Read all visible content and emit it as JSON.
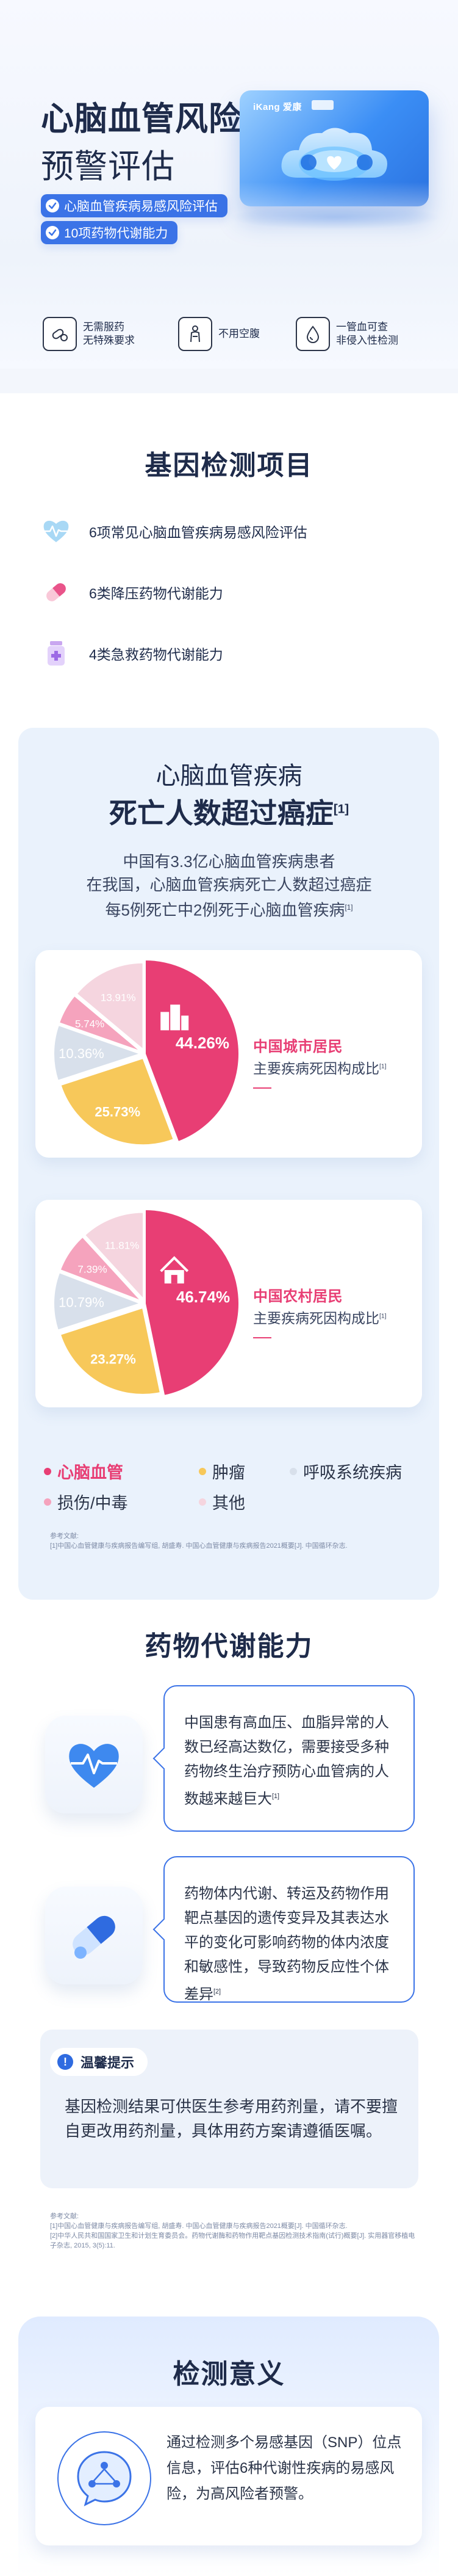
{
  "hero": {
    "title_line1": "心脑血管风险",
    "title_line2": "预警评估",
    "pill_1": "心脑血管疾病易感风险评估",
    "pill_2": "10项药物代谢能力",
    "kit_brand": "iKang 爱康",
    "features": [
      {
        "icon": "pill-capsule-icon",
        "text": "无需服药\n无特殊要求"
      },
      {
        "icon": "person-icon",
        "text": "不用空腹"
      },
      {
        "icon": "blood-drop-icon",
        "text": "一管血可查\n非侵入性检测"
      }
    ]
  },
  "gene_section": {
    "title": "基因检测项目",
    "items": [
      {
        "icon": "heartbeat-icon",
        "text": "6项常见心脑血管疾病易感风险评估"
      },
      {
        "icon": "pill-icon",
        "text": "6类降压药物代谢能力"
      },
      {
        "icon": "medicine-bottle-icon",
        "text": "4类急救药物代谢能力"
      }
    ]
  },
  "stats": {
    "title_1": "心脑血管疾病",
    "title_2": "死亡人数超过癌症",
    "title_2_sup": "[1]",
    "desc_lines": [
      "中国有3.3亿心脑血管疾病患者",
      "在我国，心脑血管疾病死亡人数超过癌症",
      "每5例死亡中2例死于心脑血管疾病"
    ],
    "desc_sup": "[1]",
    "cards": [
      {
        "title": "中国城市居民",
        "label": "主要疾病死因构成比",
        "label_sup": "[1]",
        "values": [
          44.26,
          25.73,
          10.36,
          5.74,
          13.91
        ],
        "labels": [
          "44.26%",
          "25.73%",
          "10.36%",
          "5.74%",
          "13.91%"
        ],
        "icon": "city-building-icon"
      },
      {
        "title": "中国农村居民",
        "label": "主要疾病死因构成比",
        "label_sup": "[1]",
        "values": [
          46.74,
          23.27,
          10.79,
          7.39,
          11.81
        ],
        "labels": [
          "46.74%",
          "23.27%",
          "10.79%",
          "7.39%",
          "11.81%"
        ],
        "icon": "house-icon"
      }
    ],
    "legend": [
      {
        "name": "心脑血管",
        "color": "#e83e74"
      },
      {
        "name": "肿瘤",
        "color": "#f7c85a"
      },
      {
        "name": "呼吸系统疾病",
        "color": "#d8e0eb"
      },
      {
        "name": "损伤/中毒",
        "color": "#f5a3bd"
      },
      {
        "name": "其他",
        "color": "#f5d5df"
      }
    ],
    "refs": "参考文献:\n[1]中国心血管健康与疾病报告编写组, 胡盛寿. 中国心血管健康与疾病报告2021概要[J]. 中国循环杂志."
  },
  "drug_section": {
    "title": "药物代谢能力",
    "bubble_1": "中国患有高血压、血脂异常的人数已经高达数亿，需要接受多种药物终生治疗预防心血管病的人数越来越巨大",
    "bubble_1_sup": "[1]",
    "bubble_2": "药物体内代谢、转运及药物作用靶点基因的遗传变异及其表达水平的变化可影响药物的体内浓度和敏感性，导致药物反应性个体差异",
    "bubble_2_sup": "[2]",
    "tip_title": "温馨提示",
    "tip_text": "基因检测结果可供医生参考用药剂量，请不要擅自更改用药剂量，具体用药方案请遵循医嘱。",
    "refs": "参考文献:\n[1]中国心血管健康与疾病报告编写组, 胡盛寿. 中国心血管健康与疾病报告2021概要[J]. 中国循环杂志.\n[2]中华人民共和国国家卫生和计划生育委员会。药物代谢酶和药物作用靶点基因检测技术指南(试行)概要[J]. 实用器官移植电子杂志, 2015, 3(5):11."
  },
  "significance": {
    "title": "检测意义",
    "text": "通过检测多个易感基因（SNP）位点信息，评估6种代谢性疾病的易感风险，为高风险者预警。"
  }
}
